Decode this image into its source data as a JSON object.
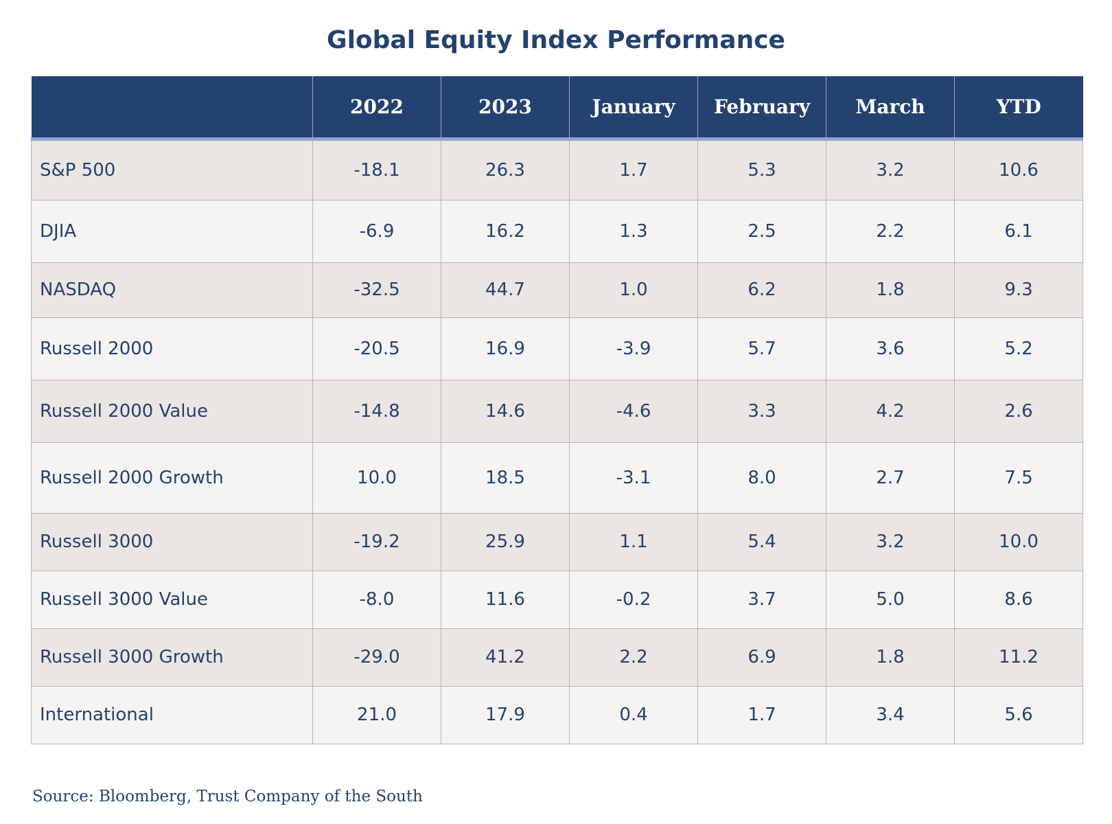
{
  "chart_data": {
    "type": "table",
    "title": "Global Equity Index Performance",
    "columns": [
      "",
      "2022",
      "2023",
      "January",
      "February",
      "March",
      "YTD"
    ],
    "rows": [
      {
        "name": "S&P 500",
        "values": [
          "-18.1",
          "26.3",
          "1.7",
          "5.3",
          "3.2",
          "10.6"
        ]
      },
      {
        "name": "DJIA",
        "values": [
          "-6.9",
          "16.2",
          "1.3",
          "2.5",
          "2.2",
          "6.1"
        ]
      },
      {
        "name": "NASDAQ",
        "values": [
          "-32.5",
          "44.7",
          "1.0",
          "6.2",
          "1.8",
          "9.3"
        ]
      },
      {
        "name": "Russell 2000",
        "values": [
          "-20.5",
          "16.9",
          "-3.9",
          "5.7",
          "3.6",
          "5.2"
        ]
      },
      {
        "name": "Russell 2000 Value",
        "values": [
          "-14.8",
          "14.6",
          "-4.6",
          "3.3",
          "4.2",
          "2.6"
        ]
      },
      {
        "name": "Russell 2000 Growth",
        "values": [
          "10.0",
          "18.5",
          "-3.1",
          "8.0",
          "2.7",
          "7.5"
        ]
      },
      {
        "name": "Russell 3000",
        "values": [
          "-19.2",
          "25.9",
          "1.1",
          "5.4",
          "3.2",
          "10.0"
        ]
      },
      {
        "name": "Russell 3000 Value",
        "values": [
          "-8.0",
          "11.6",
          "-0.2",
          "3.7",
          "5.0",
          "8.6"
        ]
      },
      {
        "name": "Russell 3000 Growth",
        "values": [
          "-29.0",
          "41.2",
          "2.2",
          "6.9",
          "1.8",
          "11.2"
        ]
      },
      {
        "name": "International",
        "values": [
          "21.0",
          "17.9",
          "0.4",
          "1.7",
          "3.4",
          "5.6"
        ]
      }
    ],
    "source": "Source: Bloomberg, Trust Company of the South",
    "colors": {
      "header_bg": "#23426f",
      "header_text": "#ffffff",
      "text": "#23426f",
      "row_odd": "#ebe6e3",
      "row_even": "#f5f4f2"
    }
  }
}
